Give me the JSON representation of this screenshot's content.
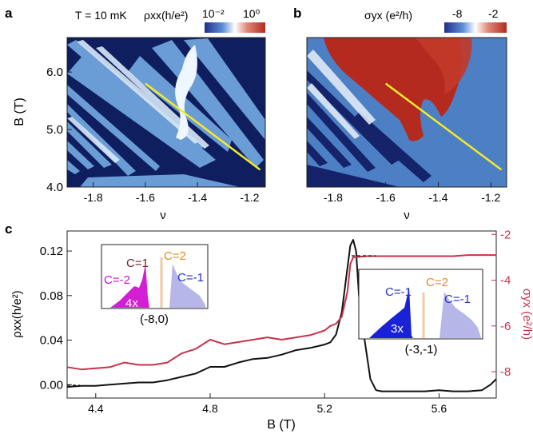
{
  "panel_labels": {
    "a": "a",
    "b": "b",
    "c": "c"
  },
  "chart_data": [
    {
      "panel": "a",
      "type": "heatmap",
      "annotation": "T = 10 mK",
      "colorbar": {
        "label": "ρxx(h/e²)",
        "min_label": "10⁻²",
        "max_label": "10⁰",
        "colors": [
          "#1f2f8c",
          "#ffffff",
          "#b42a1e"
        ],
        "scale": "log"
      },
      "xlabel": "ν",
      "ylabel": "B (T)",
      "xlim": [
        -1.9,
        -1.14
      ],
      "ylim": [
        4.0,
        6.6
      ],
      "xticks": [
        -1.8,
        -1.6,
        -1.4,
        -1.2
      ],
      "xtick_labels": [
        "-1.8",
        "-1.6",
        "-1.4",
        "-1.2"
      ],
      "yticks": [
        4.0,
        5.0,
        6.0
      ],
      "ytick_labels": [
        "4.0",
        "5.0",
        "6.0"
      ],
      "line_cut": {
        "color": "#f2ea2a",
        "x": [
          -1.6,
          -1.16
        ],
        "y": [
          5.8,
          4.3
        ]
      }
    },
    {
      "panel": "b",
      "type": "heatmap",
      "colorbar": {
        "label": "σyx (e²/h)",
        "min_label": "-8",
        "max_label": "-2",
        "colors": [
          "#1f2f8c",
          "#ffffff",
          "#b42a1e"
        ],
        "scale": "linear"
      },
      "xlabel": "ν",
      "xlim": [
        -1.9,
        -1.14
      ],
      "ylim": [
        4.0,
        6.6
      ],
      "xticks": [
        -1.8,
        -1.6,
        -1.4,
        -1.2
      ],
      "xtick_labels": [
        "-1.8",
        "-1.6",
        "-1.4",
        "-1.2"
      ],
      "line_cut": {
        "color": "#f2ea2a",
        "x": [
          -1.6,
          -1.16
        ],
        "y": [
          5.8,
          4.3
        ]
      }
    },
    {
      "panel": "c",
      "type": "line",
      "xlabel": "B (T)",
      "ylabel": "ρxx(h/e²)",
      "y2label": "σyx (e²/h)",
      "xlim": [
        4.3,
        5.8
      ],
      "ylim": [
        -0.012,
        0.138
      ],
      "y2lim": [
        -9.15,
        -1.85
      ],
      "xticks": [
        4.4,
        4.8,
        5.2,
        5.6
      ],
      "xtick_labels": [
        "4.4",
        "4.8",
        "5.2",
        "5.6"
      ],
      "yticks": [
        0.0,
        0.04,
        0.08,
        0.12
      ],
      "ytick_labels": [
        "0.00",
        "0.04",
        "0.08",
        "0.12"
      ],
      "y2ticks": [
        -8,
        -6,
        -4,
        -2
      ],
      "y2tick_labels": [
        "-8",
        "-6",
        "-4",
        "-2"
      ],
      "y2color": "#c8334a",
      "series": [
        {
          "color": "#111111",
          "axis": "left",
          "x": [
            4.3,
            4.35,
            4.4,
            4.45,
            4.5,
            4.55,
            4.6,
            4.65,
            4.7,
            4.75,
            4.8,
            4.85,
            4.9,
            4.95,
            5.0,
            5.05,
            5.1,
            5.15,
            5.2,
            5.22,
            5.24,
            5.26,
            5.28,
            5.29,
            5.3,
            5.31,
            5.32,
            5.34,
            5.36,
            5.38,
            5.4,
            5.45,
            5.5,
            5.55,
            5.6,
            5.65,
            5.7,
            5.75,
            5.78,
            5.8
          ],
          "y": [
            -0.002,
            -0.001,
            -0.001,
            0.0,
            0.001,
            0.002,
            0.002,
            0.004,
            0.007,
            0.01,
            0.016,
            0.016,
            0.02,
            0.023,
            0.024,
            0.027,
            0.031,
            0.033,
            0.036,
            0.038,
            0.045,
            0.065,
            0.105,
            0.125,
            0.13,
            0.12,
            0.08,
            0.04,
            0.005,
            -0.005,
            -0.006,
            -0.006,
            -0.006,
            -0.006,
            -0.005,
            -0.006,
            -0.006,
            -0.005,
            0.0,
            0.005
          ]
        },
        {
          "color": "#c8334a",
          "axis": "right",
          "x": [
            4.3,
            4.35,
            4.4,
            4.45,
            4.5,
            4.55,
            4.6,
            4.65,
            4.7,
            4.75,
            4.8,
            4.85,
            4.9,
            4.95,
            5.0,
            5.05,
            5.1,
            5.15,
            5.2,
            5.22,
            5.24,
            5.26,
            5.28,
            5.29,
            5.3,
            5.35,
            5.4,
            5.45,
            5.5,
            5.55,
            5.6,
            5.65,
            5.7,
            5.75,
            5.8
          ],
          "y": [
            -7.8,
            -7.9,
            -7.85,
            -7.8,
            -7.6,
            -7.7,
            -7.7,
            -7.6,
            -7.2,
            -7.0,
            -6.6,
            -6.8,
            -6.7,
            -6.6,
            -6.5,
            -6.6,
            -6.5,
            -6.4,
            -6.2,
            -6.0,
            -5.9,
            -5.6,
            -4.5,
            -3.3,
            -3.0,
            -2.95,
            -2.95,
            -2.95,
            -2.95,
            -2.95,
            -2.95,
            -2.95,
            -2.9,
            -2.9,
            -2.9
          ]
        }
      ],
      "insets": [
        {
          "labels": [
            "C=1",
            "C=2",
            "C=-2",
            "C=-1"
          ],
          "label_colors": [
            "#7a1f1f",
            "#e58a1f",
            "#cc11cc",
            "#2233cc"
          ],
          "magnification": "4x",
          "caption": "(-8,0)"
        },
        {
          "labels": [
            "C=-1",
            "C=2",
            "C=-1"
          ],
          "label_colors": [
            "#2233cc",
            "#e58a1f",
            "#2233cc"
          ],
          "magnification": "3x",
          "caption": "(-3,-1)"
        }
      ]
    }
  ]
}
